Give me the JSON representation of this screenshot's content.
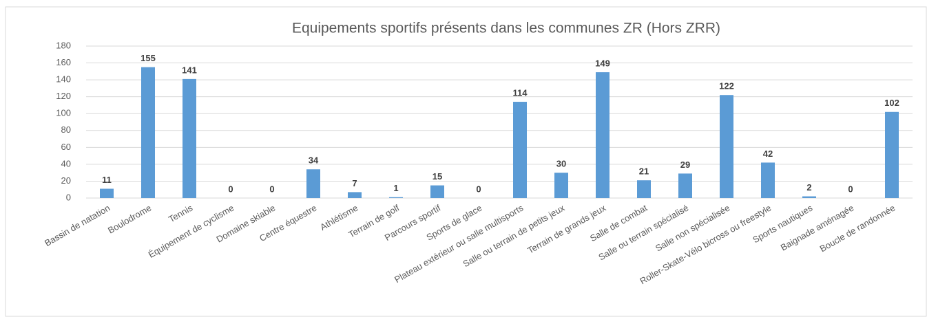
{
  "chart_data": {
    "type": "bar",
    "title": "Equipements sportifs présents dans les communes ZR (Hors ZRR)",
    "categories": [
      "Bassin de natation",
      "Boulodrome",
      "Tennis",
      "Équipement de cyclisme",
      "Domaine skiable",
      "Centre équestre",
      "Athlétisme",
      "Terrain de golf",
      "Parcours sportif",
      "Sports de glace",
      "Plateau extérieur ou salle multisports",
      "Salle ou terrain de petits jeux",
      "Terrain de grands jeux",
      "Salle de combat",
      "Salle ou terrain spécialisé",
      "Salle non spécialisée",
      "Roller-Skate-Vélo bicross ou freestyle",
      "Sports nautiques",
      "Baignade aménagée",
      "Boucle de randonnée"
    ],
    "values": [
      11,
      155,
      141,
      0,
      0,
      34,
      7,
      1,
      15,
      0,
      114,
      30,
      149,
      21,
      29,
      122,
      42,
      2,
      0,
      102
    ],
    "color": "#5b9bd5",
    "ylim": [
      0,
      180
    ],
    "yticks": [
      0,
      20,
      40,
      60,
      80,
      100,
      120,
      140,
      160,
      180
    ],
    "grid": true
  }
}
